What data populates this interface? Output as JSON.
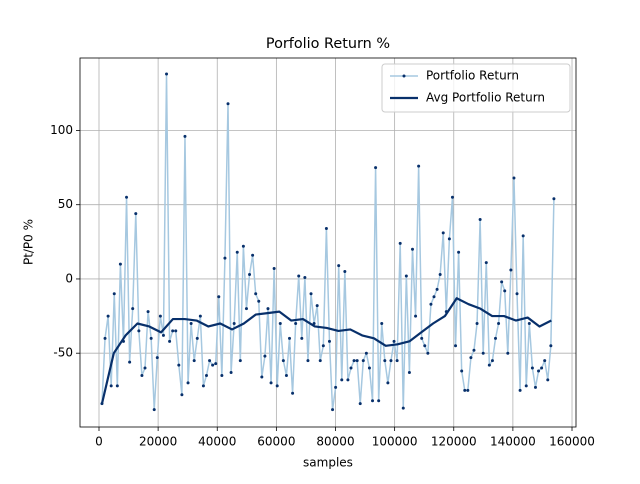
{
  "chart_data": {
    "type": "line",
    "title": "Porfolio Return %",
    "xlabel": "samples",
    "ylabel": "Pt/P0 %",
    "xlim": [
      -6427,
      161350
    ],
    "ylim": [
      -99.7,
      148.8
    ],
    "xticks": [
      0,
      20000,
      40000,
      60000,
      80000,
      100000,
      120000,
      140000,
      160000
    ],
    "yticks": [
      -50,
      0,
      50,
      100
    ],
    "grid": true,
    "legend": "upper right",
    "series": [
      {
        "name": "Portfolio Return",
        "color": "#a6c8e0",
        "marker_color": "#08306b",
        "x": [
          1000,
          2040,
          3080,
          4120,
          5160,
          6200,
          7240,
          8280,
          9320,
          10360,
          11400,
          12440,
          13480,
          14520,
          15560,
          16600,
          17640,
          18680,
          19720,
          20760,
          21800,
          22840,
          23880,
          24920,
          25960,
          27000,
          28040,
          29080,
          30120,
          31160,
          32200,
          33240,
          34280,
          35320,
          36360,
          37400,
          38440,
          39480,
          40520,
          41560,
          42600,
          43640,
          44680,
          45720,
          46760,
          47800,
          48840,
          49880,
          50920,
          51960,
          53000,
          54040,
          55080,
          56120,
          57160,
          58200,
          59240,
          60280,
          61320,
          62360,
          63400,
          64440,
          65480,
          66520,
          67560,
          68600,
          69640,
          70680,
          71720,
          72760,
          73800,
          74840,
          75880,
          76920,
          77960,
          79000,
          80040,
          81080,
          82120,
          83160,
          84200,
          85240,
          86280,
          87320,
          88360,
          89400,
          90440,
          91480,
          92520,
          93560,
          94600,
          95640,
          96680,
          97720,
          98760,
          99800,
          100840,
          101880,
          102920,
          103960,
          105000,
          106040,
          107080,
          108120,
          109160,
          110200,
          111240,
          112280,
          113320,
          114360,
          115400,
          116440,
          117480,
          118520,
          119560,
          120600,
          121640,
          122680,
          123720,
          124760,
          125800,
          126840,
          127880,
          128920,
          129960,
          131000,
          132040,
          133080,
          134120,
          135160,
          136200,
          137240,
          138280,
          139320,
          140360,
          141400,
          142440,
          143480,
          144520,
          145560,
          146600,
          147640,
          148680,
          149720,
          150760,
          151800,
          152840,
          153880
        ],
        "values": [
          -84,
          -40,
          -25,
          -72,
          -10,
          -72,
          10,
          -42,
          55,
          -56,
          -20,
          44,
          -35,
          -65,
          -60,
          -22,
          -40,
          -88,
          -53,
          -25,
          -38,
          138,
          -42,
          -35,
          -35,
          -58,
          -78,
          96,
          -70,
          -30,
          -55,
          -40,
          -25,
          -72,
          -65,
          -55,
          -58,
          -57,
          -12,
          -65,
          14,
          118,
          -63,
          -30,
          18,
          -55,
          22,
          -20,
          3,
          16,
          -10,
          -15,
          -66,
          -52,
          -20,
          -70,
          7,
          -72,
          -30,
          -55,
          -65,
          -40,
          -77,
          -30,
          2,
          -40,
          1,
          -55,
          -10,
          -30,
          -18,
          -55,
          -45,
          34,
          -42,
          -88,
          -73,
          9,
          -68,
          5,
          -68,
          -60,
          -55,
          -55,
          -84,
          -55,
          -50,
          -60,
          -82,
          75,
          -82,
          -30,
          -55,
          -70,
          -55,
          -42,
          -55,
          24,
          -87,
          2,
          -63,
          20,
          -25,
          76,
          -40,
          -45,
          -50,
          -17,
          -12,
          -7,
          3,
          31,
          -22,
          27,
          55,
          -45,
          18,
          -62,
          -75,
          -75,
          -53,
          -48,
          -30,
          40,
          -50,
          11,
          -58,
          -55,
          -40,
          -30,
          -2,
          -8,
          -50,
          6,
          68,
          -10,
          -75,
          29,
          -72,
          -30,
          -60,
          -73,
          -62,
          -60,
          -55,
          -68,
          -45,
          54
        ]
      },
      {
        "name": "Avg Portfolio Return",
        "color": "#08306b",
        "x": [
          1000,
          5000,
          9000,
          13000,
          17000,
          21000,
          25000,
          29000,
          33000,
          37000,
          41000,
          45000,
          49000,
          53000,
          57000,
          61000,
          65000,
          69000,
          73000,
          77000,
          81000,
          85000,
          89000,
          93000,
          97000,
          101000,
          105000,
          109000,
          113000,
          117000,
          121000,
          125000,
          129000,
          133000,
          137000,
          141000,
          145000,
          149000,
          153000
        ],
        "values": [
          -84,
          -50,
          -38,
          -30,
          -32,
          -36,
          -27,
          -27,
          -28,
          -32,
          -30,
          -34,
          -30,
          -24,
          -23,
          -22,
          -28,
          -27,
          -32,
          -33,
          -35,
          -34,
          -38,
          -40,
          -45,
          -44,
          -42,
          -36,
          -30,
          -25,
          -13,
          -17,
          -20,
          -25,
          -25,
          -28,
          -26,
          -32,
          -28
        ]
      }
    ]
  }
}
